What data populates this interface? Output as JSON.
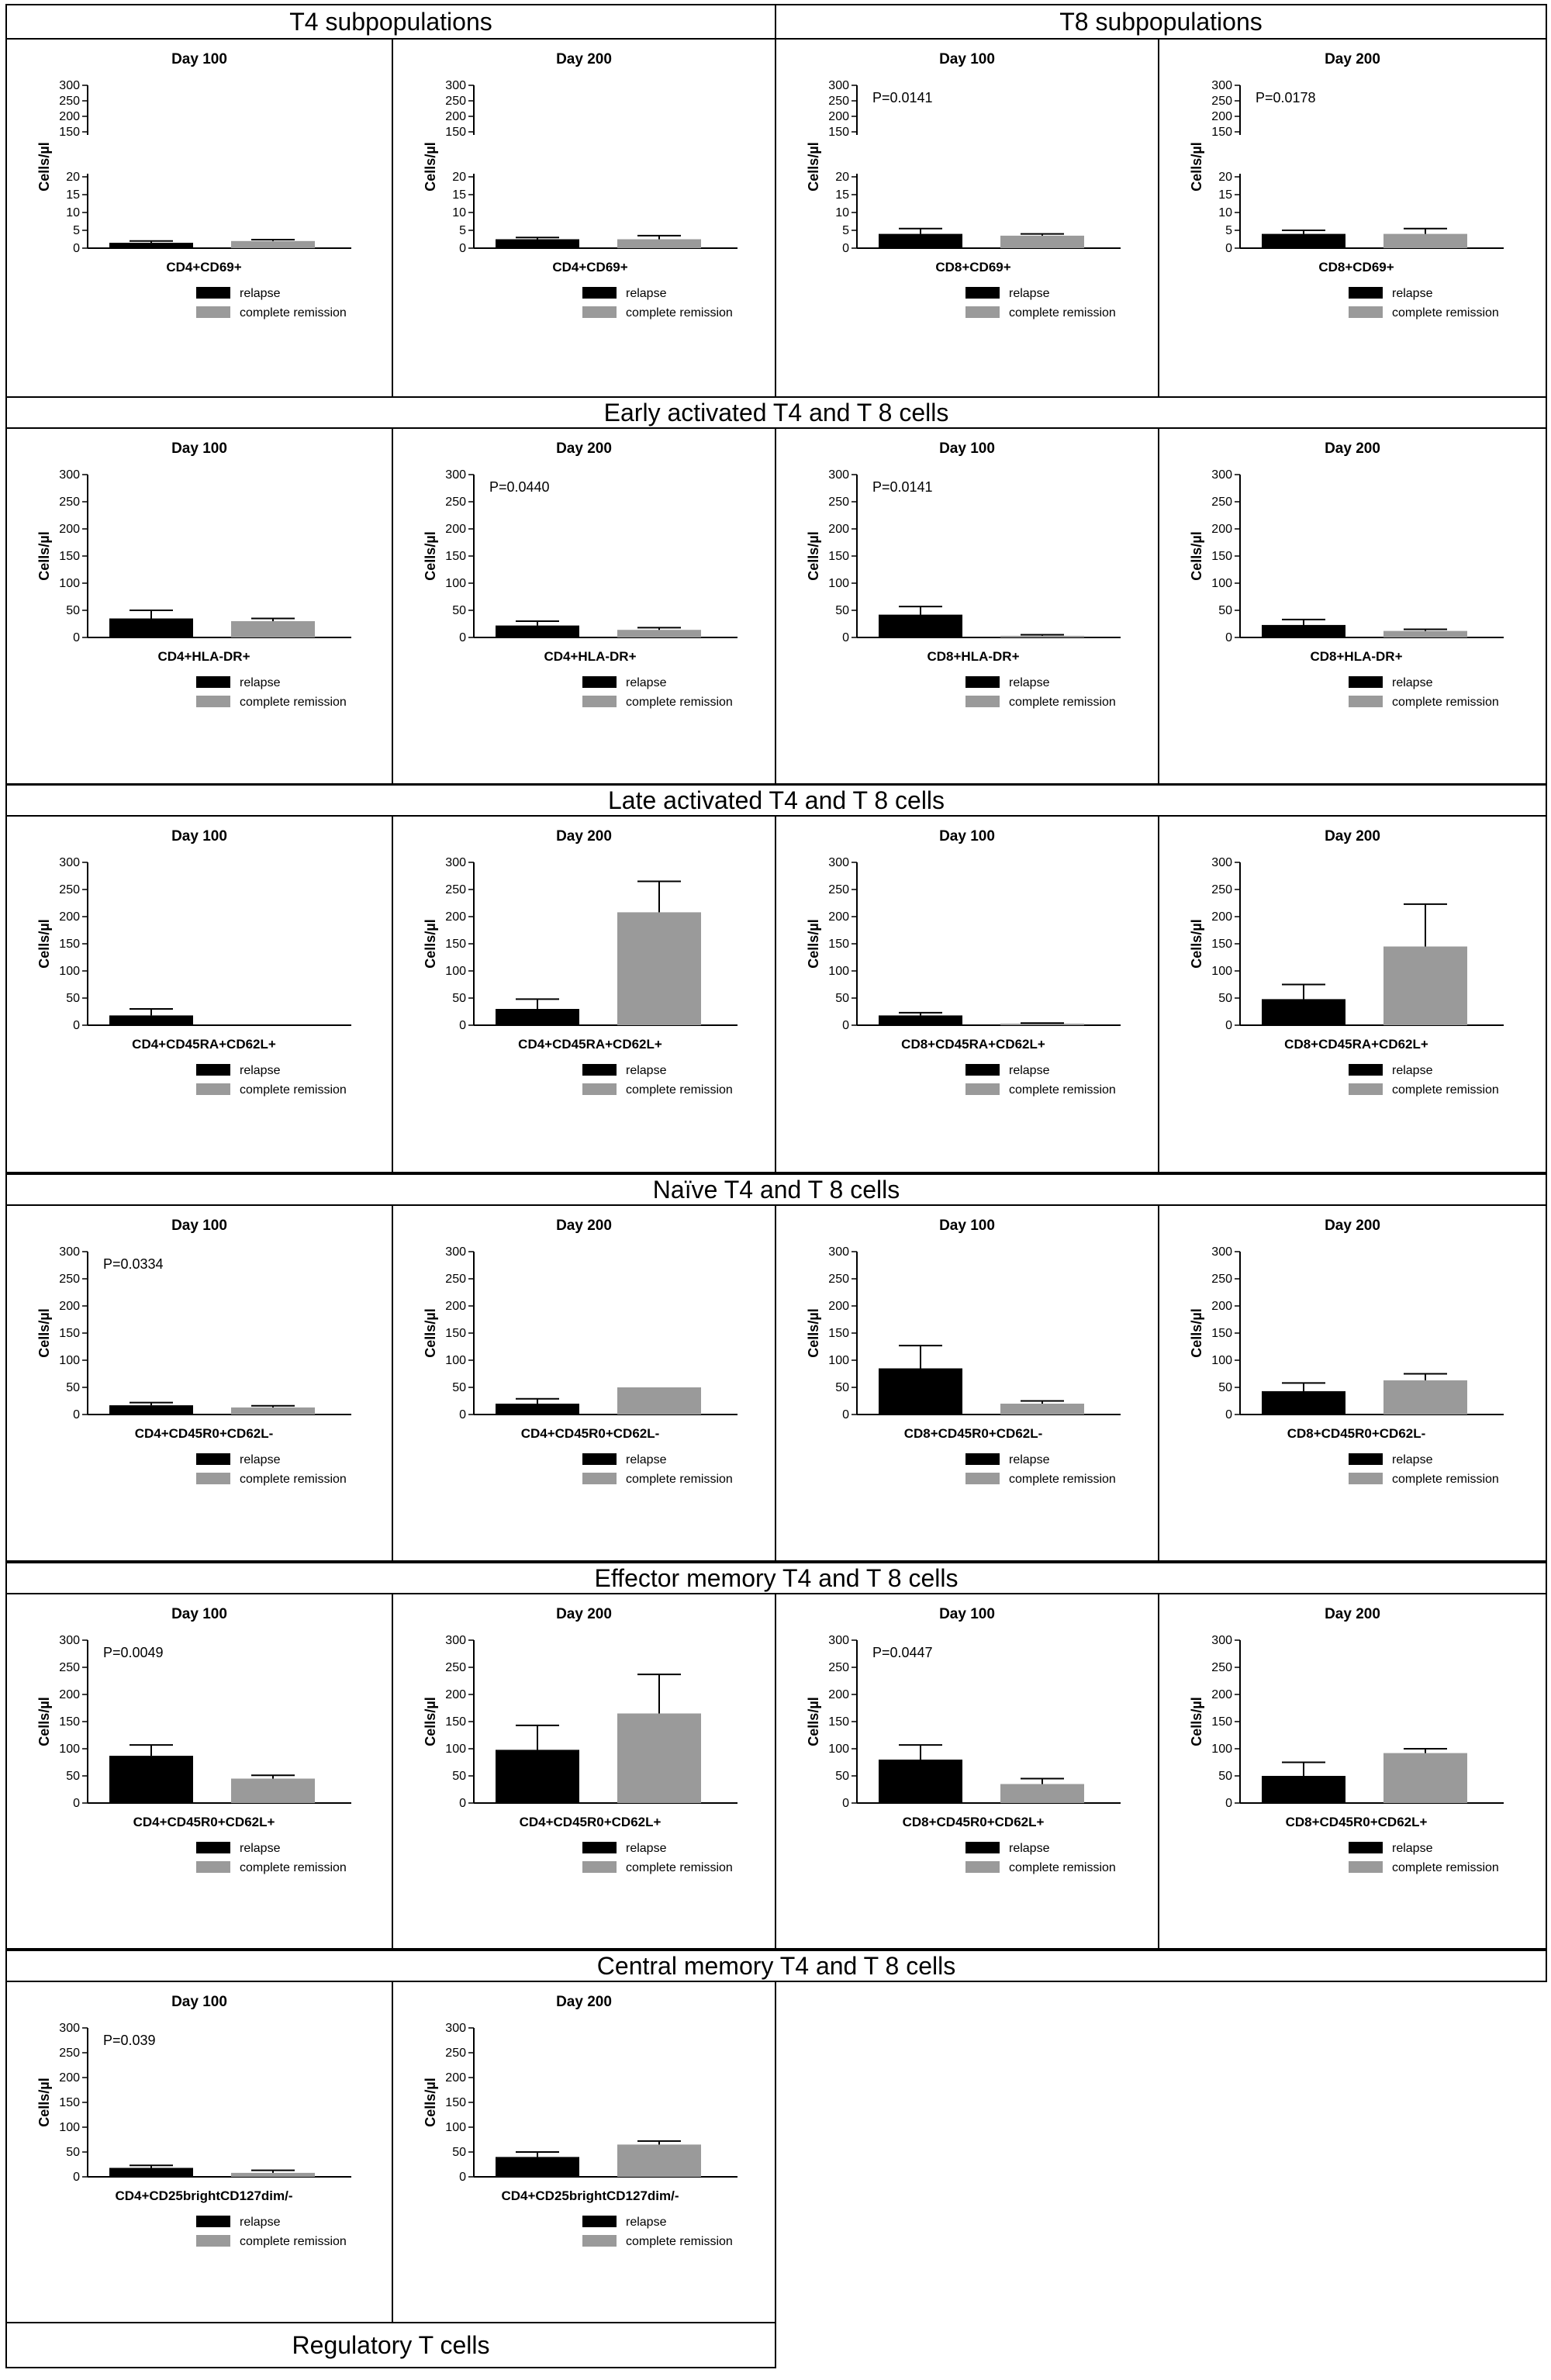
{
  "colors": {
    "relapse": "#000000",
    "complete_remission": "#9a9a9a",
    "border": "#000000"
  },
  "section_headers": [
    "T4 subpopulations",
    "T8 subpopulations",
    "Early activated T4 and T 8 cells",
    "Late  activated T4 and T 8 cells",
    "Naïve T4 and T 8 cells",
    "Effector memory T4 and T 8 cells",
    "Central memory T4 and T 8 cells",
    "Regulatory T cells"
  ],
  "legend": {
    "relapse": "relapse",
    "complete_remission": "complete remission"
  },
  "ylabel": "Cells/µl",
  "chart_data": [
    {
      "type": "bar",
      "title": "Day 100",
      "xlabel": "CD4+CD69+",
      "ylabel": "Cells/µl",
      "pvalue": "",
      "broken_axis": true,
      "yticks_lower": [
        "0",
        "5",
        "10",
        "15",
        "20"
      ],
      "yticks_upper": [
        "150",
        "200",
        "250",
        "300"
      ],
      "series": [
        {
          "name": "relapse",
          "values": [
            1.5
          ],
          "error": [
            0.5
          ]
        },
        {
          "name": "complete remission",
          "values": [
            2
          ],
          "error": [
            0.4
          ]
        }
      ]
    },
    {
      "type": "bar",
      "title": "Day 200",
      "xlabel": "CD4+CD69+",
      "ylabel": "Cells/µl",
      "pvalue": "",
      "broken_axis": true,
      "yticks_lower": [
        "0",
        "5",
        "10",
        "15",
        "20"
      ],
      "yticks_upper": [
        "150",
        "200",
        "250",
        "300"
      ],
      "series": [
        {
          "name": "relapse",
          "values": [
            2.5
          ],
          "error": [
            0.5
          ]
        },
        {
          "name": "complete remission",
          "values": [
            2.5
          ],
          "error": [
            1
          ]
        }
      ]
    },
    {
      "type": "bar",
      "title": "Day 100",
      "xlabel": "CD8+CD69+",
      "ylabel": "Cells/µl",
      "pvalue": "P=0.0141",
      "broken_axis": true,
      "yticks_lower": [
        "0",
        "5",
        "10",
        "15",
        "20"
      ],
      "yticks_upper": [
        "150",
        "200",
        "250",
        "300"
      ],
      "series": [
        {
          "name": "relapse",
          "values": [
            4
          ],
          "error": [
            1.5
          ]
        },
        {
          "name": "complete remission",
          "values": [
            3.5
          ],
          "error": [
            0.5
          ]
        }
      ]
    },
    {
      "type": "bar",
      "title": "Day 200",
      "xlabel": "CD8+CD69+",
      "ylabel": "Cells/µl",
      "pvalue": "P=0.0178",
      "broken_axis": true,
      "yticks_lower": [
        "0",
        "5",
        "10",
        "15",
        "20"
      ],
      "yticks_upper": [
        "150",
        "200",
        "250",
        "300"
      ],
      "series": [
        {
          "name": "relapse",
          "values": [
            4
          ],
          "error": [
            1
          ]
        },
        {
          "name": "complete remission",
          "values": [
            4
          ],
          "error": [
            1.5
          ]
        }
      ]
    },
    {
      "type": "bar",
      "title": "Day 100",
      "xlabel": "CD4+HLA-DR+",
      "ylabel": "Cells/µl",
      "pvalue": "",
      "ylim": [
        0,
        300
      ],
      "series": [
        {
          "name": "relapse",
          "values": [
            35
          ],
          "error": [
            15
          ]
        },
        {
          "name": "complete remission",
          "values": [
            30
          ],
          "error": [
            5
          ]
        }
      ]
    },
    {
      "type": "bar",
      "title": "Day 200",
      "xlabel": "CD4+HLA-DR+",
      "ylabel": "Cells/µl",
      "pvalue": "P=0.0440",
      "ylim": [
        0,
        300
      ],
      "series": [
        {
          "name": "relapse",
          "values": [
            22
          ],
          "error": [
            8
          ]
        },
        {
          "name": "complete remission",
          "values": [
            14
          ],
          "error": [
            4
          ]
        }
      ]
    },
    {
      "type": "bar",
      "title": "Day 100",
      "xlabel": "CD8+HLA-DR+",
      "ylabel": "Cells/µl",
      "pvalue": "P=0.0141",
      "ylim": [
        0,
        300
      ],
      "series": [
        {
          "name": "relapse",
          "values": [
            42
          ],
          "error": [
            15
          ]
        },
        {
          "name": "complete remission",
          "values": [
            3
          ],
          "error": [
            2
          ]
        }
      ]
    },
    {
      "type": "bar",
      "title": "Day 200",
      "xlabel": "CD8+HLA-DR+",
      "ylabel": "Cells/µl",
      "pvalue": "",
      "ylim": [
        0,
        300
      ],
      "series": [
        {
          "name": "relapse",
          "values": [
            23
          ],
          "error": [
            10
          ]
        },
        {
          "name": "complete remission",
          "values": [
            12
          ],
          "error": [
            3
          ]
        }
      ]
    },
    {
      "type": "bar",
      "title": "Day 100",
      "xlabel": "CD4+CD45RA+CD62L+",
      "ylabel": "Cells/µl",
      "pvalue": "",
      "ylim": [
        0,
        300
      ],
      "series": [
        {
          "name": "relapse",
          "values": [
            18
          ],
          "error": [
            12
          ]
        },
        {
          "name": "complete remission",
          "values": [
            0
          ],
          "error": [
            0
          ]
        }
      ]
    },
    {
      "type": "bar",
      "title": "Day 200",
      "xlabel": "CD4+CD45RA+CD62L+",
      "ylabel": "Cells/µl",
      "pvalue": "",
      "ylim": [
        0,
        300
      ],
      "series": [
        {
          "name": "relapse",
          "values": [
            30
          ],
          "error": [
            18
          ]
        },
        {
          "name": "complete remission",
          "values": [
            208
          ],
          "error": [
            57
          ]
        }
      ]
    },
    {
      "type": "bar",
      "title": "Day 100",
      "xlabel": "CD8+CD45RA+CD62L+",
      "ylabel": "Cells/µl",
      "pvalue": "",
      "ylim": [
        0,
        300
      ],
      "series": [
        {
          "name": "relapse",
          "values": [
            18
          ],
          "error": [
            5
          ]
        },
        {
          "name": "complete remission",
          "values": [
            2
          ],
          "error": [
            2
          ]
        }
      ]
    },
    {
      "type": "bar",
      "title": "Day 200",
      "xlabel": "CD8+CD45RA+CD62L+",
      "ylabel": "Cells/µl",
      "pvalue": "",
      "ylim": [
        0,
        300
      ],
      "series": [
        {
          "name": "relapse",
          "values": [
            48
          ],
          "error": [
            27
          ]
        },
        {
          "name": "complete remission",
          "values": [
            145
          ],
          "error": [
            78
          ]
        }
      ]
    },
    {
      "type": "bar",
      "title": "Day 100",
      "xlabel": "CD4+CD45R0+CD62L-",
      "ylabel": "Cells/µl",
      "pvalue": "P=0.0334",
      "ylim": [
        0,
        300
      ],
      "series": [
        {
          "name": "relapse",
          "values": [
            17
          ],
          "error": [
            5
          ]
        },
        {
          "name": "complete remission",
          "values": [
            13
          ],
          "error": [
            3
          ]
        }
      ]
    },
    {
      "type": "bar",
      "title": "Day 200",
      "xlabel": "CD4+CD45R0+CD62L-",
      "ylabel": "Cells/µl",
      "pvalue": "",
      "ylim": [
        0,
        300
      ],
      "series": [
        {
          "name": "relapse",
          "values": [
            20
          ],
          "error": [
            9
          ]
        },
        {
          "name": "complete remission",
          "values": [
            50
          ],
          "error": [
            0
          ]
        }
      ]
    },
    {
      "type": "bar",
      "title": "Day 100",
      "xlabel": "CD8+CD45R0+CD62L-",
      "ylabel": "Cells/µl",
      "pvalue": "",
      "ylim": [
        0,
        300
      ],
      "series": [
        {
          "name": "relapse",
          "values": [
            85
          ],
          "error": [
            42
          ]
        },
        {
          "name": "complete remission",
          "values": [
            20
          ],
          "error": [
            5
          ]
        }
      ]
    },
    {
      "type": "bar",
      "title": "Day 200",
      "xlabel": "CD8+CD45R0+CD62L-",
      "ylabel": "Cells/µl",
      "pvalue": "",
      "ylim": [
        0,
        300
      ],
      "series": [
        {
          "name": "relapse",
          "values": [
            43
          ],
          "error": [
            15
          ]
        },
        {
          "name": "complete remission",
          "values": [
            63
          ],
          "error": [
            12
          ]
        }
      ]
    },
    {
      "type": "bar",
      "title": "Day 100",
      "xlabel": "CD4+CD45R0+CD62L+",
      "ylabel": "Cells/µl",
      "pvalue": "P=0.0049",
      "ylim": [
        0,
        300
      ],
      "series": [
        {
          "name": "relapse",
          "values": [
            87
          ],
          "error": [
            20
          ]
        },
        {
          "name": "complete remission",
          "values": [
            45
          ],
          "error": [
            6
          ]
        }
      ]
    },
    {
      "type": "bar",
      "title": "Day 200",
      "xlabel": "CD4+CD45R0+CD62L+",
      "ylabel": "Cells/µl",
      "pvalue": "",
      "ylim": [
        0,
        300
      ],
      "series": [
        {
          "name": "relapse",
          "values": [
            98
          ],
          "error": [
            45
          ]
        },
        {
          "name": "complete remission",
          "values": [
            165
          ],
          "error": [
            72
          ]
        }
      ]
    },
    {
      "type": "bar",
      "title": "Day 100",
      "xlabel": "CD8+CD45R0+CD62L+",
      "ylabel": "Cells/µl",
      "pvalue": "P=0.0447",
      "ylim": [
        0,
        300
      ],
      "series": [
        {
          "name": "relapse",
          "values": [
            80
          ],
          "error": [
            27
          ]
        },
        {
          "name": "complete remission",
          "values": [
            35
          ],
          "error": [
            10
          ]
        }
      ]
    },
    {
      "type": "bar",
      "title": "Day 200",
      "xlabel": "CD8+CD45R0+CD62L+",
      "ylabel": "Cells/µl",
      "pvalue": "",
      "ylim": [
        0,
        300
      ],
      "series": [
        {
          "name": "relapse",
          "values": [
            50
          ],
          "error": [
            25
          ]
        },
        {
          "name": "complete remission",
          "values": [
            92
          ],
          "error": [
            8
          ]
        }
      ]
    },
    {
      "type": "bar",
      "title": "Day 100",
      "xlabel": "CD4+CD25brightCD127dim/-",
      "ylabel": "Cells/µl",
      "pvalue": "P=0.039",
      "ylim": [
        0,
        300
      ],
      "series": [
        {
          "name": "relapse",
          "values": [
            18
          ],
          "error": [
            5
          ]
        },
        {
          "name": "complete remission",
          "values": [
            8
          ],
          "error": [
            5
          ]
        }
      ]
    },
    {
      "type": "bar",
      "title": "Day 200",
      "xlabel": "CD4+CD25brightCD127dim/-",
      "ylabel": "Cells/µl",
      "pvalue": "",
      "ylim": [
        0,
        300
      ],
      "series": [
        {
          "name": "relapse",
          "values": [
            40
          ],
          "error": [
            10
          ]
        },
        {
          "name": "complete remission",
          "values": [
            65
          ],
          "error": [
            7
          ]
        }
      ]
    }
  ]
}
